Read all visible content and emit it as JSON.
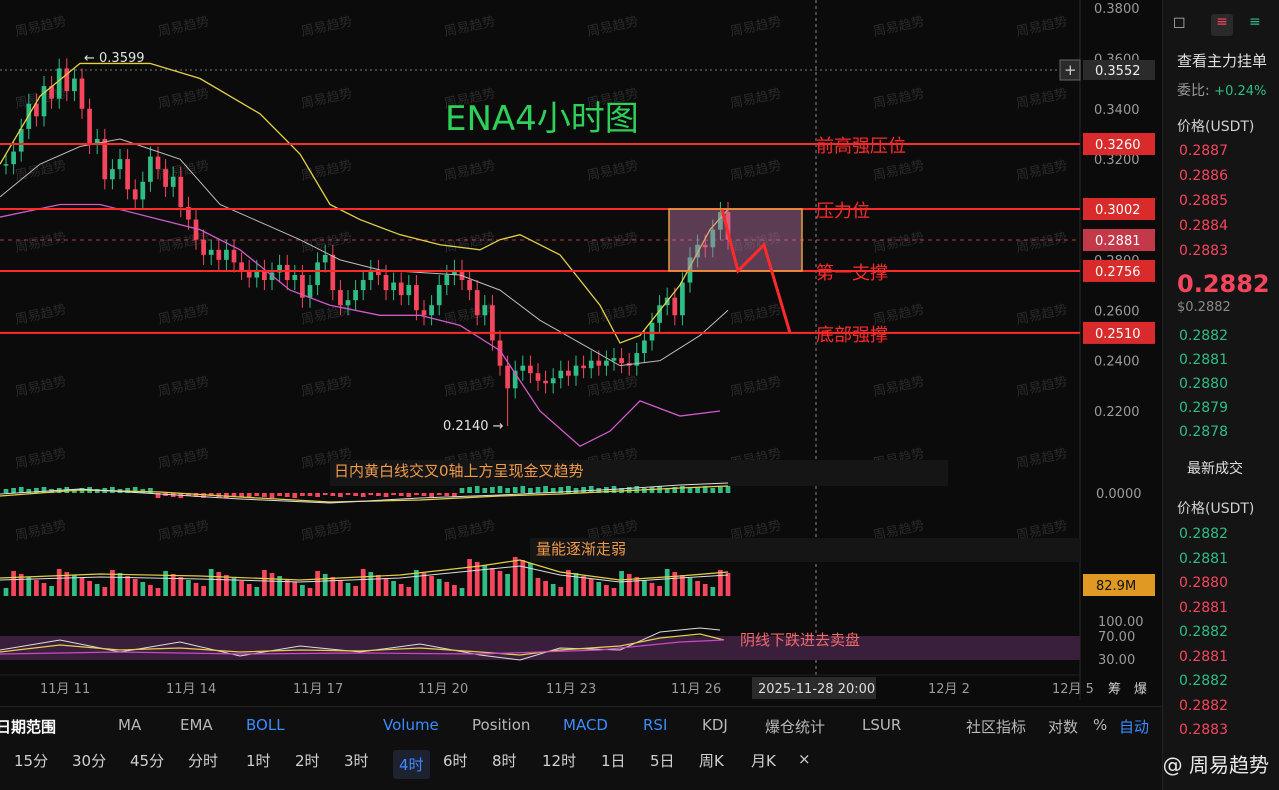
{
  "chart_data": {
    "type": "candlestick",
    "title": "ENA4小时图",
    "x_ticks": [
      "11月 11",
      "11月 14",
      "11月 17",
      "11月 20",
      "11月 23",
      "11月 26",
      "2025-11-28 20:00",
      "12月 2",
      "12月 5"
    ],
    "y_ticks": [
      "0.3800",
      "0.3600",
      "0.3400",
      "0.3200",
      "0.2800",
      "0.2600",
      "0.2400",
      "0.2200"
    ],
    "ylim": [
      0.205,
      0.38
    ],
    "high_label": "← 0.3599",
    "low_label": "0.2140 →",
    "candles_close": [
      0.318,
      0.323,
      0.332,
      0.342,
      0.337,
      0.349,
      0.344,
      0.356,
      0.347,
      0.352,
      0.34,
      0.326,
      0.328,
      0.312,
      0.316,
      0.32,
      0.308,
      0.304,
      0.311,
      0.321,
      0.316,
      0.309,
      0.313,
      0.301,
      0.296,
      0.288,
      0.282,
      0.284,
      0.28,
      0.284,
      0.279,
      0.276,
      0.273,
      0.276,
      0.272,
      0.275,
      0.278,
      0.272,
      0.274,
      0.265,
      0.27,
      0.279,
      0.282,
      0.268,
      0.262,
      0.264,
      0.268,
      0.272,
      0.276,
      0.274,
      0.268,
      0.271,
      0.266,
      0.27,
      0.26,
      0.258,
      0.262,
      0.27,
      0.274,
      0.276,
      0.272,
      0.268,
      0.258,
      0.262,
      0.248,
      0.238,
      0.229,
      0.236,
      0.238,
      0.235,
      0.232,
      0.231,
      0.233,
      0.236,
      0.234,
      0.238,
      0.237,
      0.24,
      0.238,
      0.24,
      0.241,
      0.239,
      0.238,
      0.243,
      0.248,
      0.255,
      0.262,
      0.265,
      0.258,
      0.271,
      0.281,
      0.286,
      0.285,
      0.292,
      0.299,
      0.288
    ],
    "ma_yellow_label": "BOLL",
    "levels": [
      {
        "label": "前高强压位",
        "value": 0.326,
        "price": "0.3260"
      },
      {
        "label": "压力位",
        "value": 0.3002,
        "price": "0.3002"
      },
      {
        "label": "第一支撑",
        "value": 0.2756,
        "price": "0.2756"
      },
      {
        "label": "底部强撑",
        "value": 0.251,
        "price": "0.2510"
      }
    ],
    "current_price_tag": "0.2881",
    "dashed_price_tag": "0.3552",
    "macd_label": "日内黄白线交叉0轴上方呈现金叉趋势",
    "macd_zero": "0.0000",
    "volume_label": "量能逐渐走弱",
    "volume_value": "82.9M",
    "rsi_label": "阴线下跌进去卖盘",
    "rsi_ticks": [
      "100.00",
      "70.00",
      "30.00"
    ]
  },
  "right_panel": {
    "view_orders": "查看主力挂单",
    "ratio_label": "委比:",
    "ratio_value": "+0.24%",
    "price_header": "价格(USDT)",
    "asks": [
      "0.2887",
      "0.2886",
      "0.2885",
      "0.2884",
      "0.2883"
    ],
    "last_price": "0.2882",
    "last_price_sub": "$0.2882",
    "bids": [
      "0.2882",
      "0.2881",
      "0.2880",
      "0.2879",
      "0.2878"
    ],
    "trades_title": "最新成交",
    "trades_header": "价格(USDT)",
    "trades": [
      {
        "p": "0.2882",
        "c": "#2fbd85"
      },
      {
        "p": "0.2881",
        "c": "#2fbd85"
      },
      {
        "p": "0.2880",
        "c": "#f6465d"
      },
      {
        "p": "0.2881",
        "c": "#f6465d"
      },
      {
        "p": "0.2882",
        "c": "#2fbd85"
      },
      {
        "p": "0.2881",
        "c": "#f6465d"
      },
      {
        "p": "0.2882",
        "c": "#2fbd85"
      },
      {
        "p": "0.2882",
        "c": "#f6465d"
      },
      {
        "p": "0.2883",
        "c": "#f6465d"
      }
    ]
  },
  "toolbar_indicators": [
    "日期范围",
    "MA",
    "EMA",
    "BOLL",
    "Volume",
    "Position",
    "MACD",
    "RSI",
    "KDJ",
    "爆仓统计",
    "LSUR",
    "社区指标",
    "对数",
    "%",
    "自动"
  ],
  "toolbar_timeframes": [
    "15分",
    "30分",
    "45分",
    "分时",
    "1时",
    "2时",
    "3时",
    "4时",
    "6时",
    "8时",
    "12时",
    "1日",
    "5日",
    "周K",
    "月K",
    "×"
  ],
  "axis_extras": [
    "筹",
    "爆"
  ],
  "watermark": "周易趋势",
  "watermark_handle": "@ 周易趋势",
  "colors": {
    "up": "#2fbd85",
    "down": "#f6465d",
    "level": "#ff2a2a",
    "title": "#2ed05a",
    "boll": "#e3d049",
    "ma": "#bdbdbd"
  }
}
